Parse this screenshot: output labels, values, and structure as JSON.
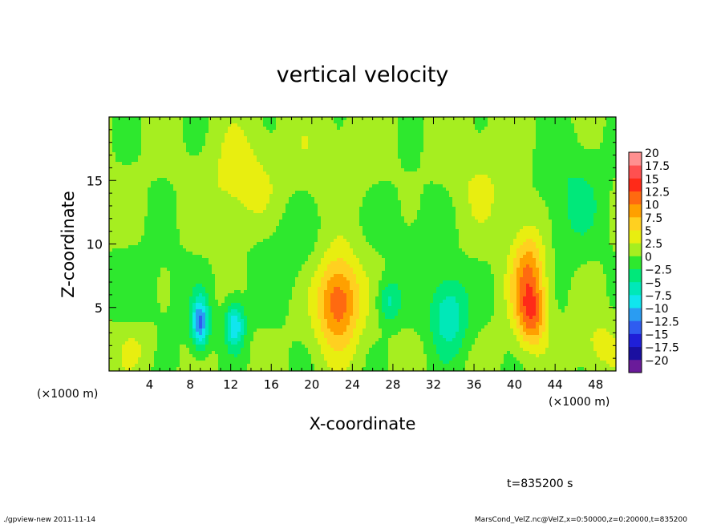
{
  "chart_data": {
    "type": "heatmap",
    "title": "vertical velocity",
    "xlabel": "X-coordinate",
    "ylabel": "Z-coordinate",
    "x_unit_left": "(×1000 m)",
    "x_unit_right": "(×1000 m)",
    "xlim": [
      0,
      50
    ],
    "ylim": [
      0,
      20
    ],
    "x_ticks": [
      4,
      8,
      12,
      16,
      20,
      24,
      28,
      32,
      36,
      40,
      44,
      48
    ],
    "y_ticks": [
      5,
      10,
      15
    ],
    "x_tick_labels": [
      "4",
      "8",
      "12",
      "16",
      "20",
      "24",
      "28",
      "32",
      "36",
      "40",
      "44",
      "48"
    ],
    "y_tick_labels": [
      "5",
      "10",
      "15"
    ],
    "background_value": 1.5,
    "features": [
      {
        "x": 22.6,
        "z": 5.5,
        "sx": 1.5,
        "sz": 2.6,
        "amp": 11.5
      },
      {
        "x": 41.4,
        "z": 7.2,
        "sx": 1.2,
        "sz": 2.8,
        "amp": 9.5
      },
      {
        "x": 41.8,
        "z": 4.2,
        "sx": 1.0,
        "sz": 1.6,
        "amp": 6.5
      },
      {
        "x": 9.0,
        "z": 3.8,
        "sx": 0.6,
        "sz": 1.4,
        "amp": -12.0
      },
      {
        "x": 12.4,
        "z": 3.6,
        "sx": 0.7,
        "sz": 1.3,
        "amp": -9.5
      },
      {
        "x": 33.5,
        "z": 4.5,
        "sx": 1.3,
        "sz": 2.2,
        "amp": -7.5
      },
      {
        "x": 27.6,
        "z": 5.5,
        "sx": 0.8,
        "sz": 1.2,
        "amp": -5.5
      },
      {
        "x": 13.0,
        "z": 14.5,
        "sx": 2.3,
        "sz": 3.0,
        "amp": 3.5
      },
      {
        "x": 4.0,
        "z": 6.0,
        "sx": 3.0,
        "sz": 3.0,
        "amp": -1.5
      },
      {
        "x": 45.5,
        "z": 13.5,
        "sx": 2.5,
        "sz": 3.5,
        "amp": -3.0
      },
      {
        "x": 17.0,
        "z": 9.5,
        "sx": 3.0,
        "sz": 3.0,
        "amp": -2.0
      },
      {
        "x": 30.0,
        "z": 12.0,
        "sx": 3.0,
        "sz": 3.0,
        "amp": -1.5
      },
      {
        "x": 36.5,
        "z": 15.0,
        "sx": 3.0,
        "sz": 3.0,
        "amp": 2.0
      },
      {
        "x": 22.0,
        "z": 16.5,
        "sx": 4.0,
        "sz": 2.5,
        "amp": 1.5
      },
      {
        "x": 48.5,
        "z": 2.0,
        "sx": 1.5,
        "sz": 1.5,
        "amp": 3.0
      },
      {
        "x": 2.5,
        "z": 2.0,
        "sx": 1.5,
        "sz": 1.5,
        "amp": 2.5
      }
    ],
    "colorbar": {
      "levels": [
        "20",
        "17.5",
        "15",
        "12.5",
        "10",
        "7.5",
        "5",
        "2.5",
        "0",
        "−2.5",
        "−5",
        "−7.5",
        "−10",
        "−12.5",
        "−15",
        "−17.5",
        "−20"
      ],
      "min": -20,
      "max": 20,
      "colors": [
        "#6a1b9a",
        "#1a0fa0",
        "#1f1fd8",
        "#2f5cf0",
        "#2a9cf2",
        "#10e6ee",
        "#00e8b8",
        "#00e87a",
        "#2ee82e",
        "#a6ee20",
        "#e8ee10",
        "#ffd020",
        "#ffa000",
        "#ff6a10",
        "#ff2a18",
        "#ff5050",
        "#ff9090"
      ]
    },
    "annotations": {
      "time": "t=835200 s"
    }
  },
  "footer": {
    "left": "./gpview-new  2011-11-14",
    "right": "MarsCond_VelZ.nc@VelZ,x=0:50000,z=0:20000,t=835200"
  }
}
